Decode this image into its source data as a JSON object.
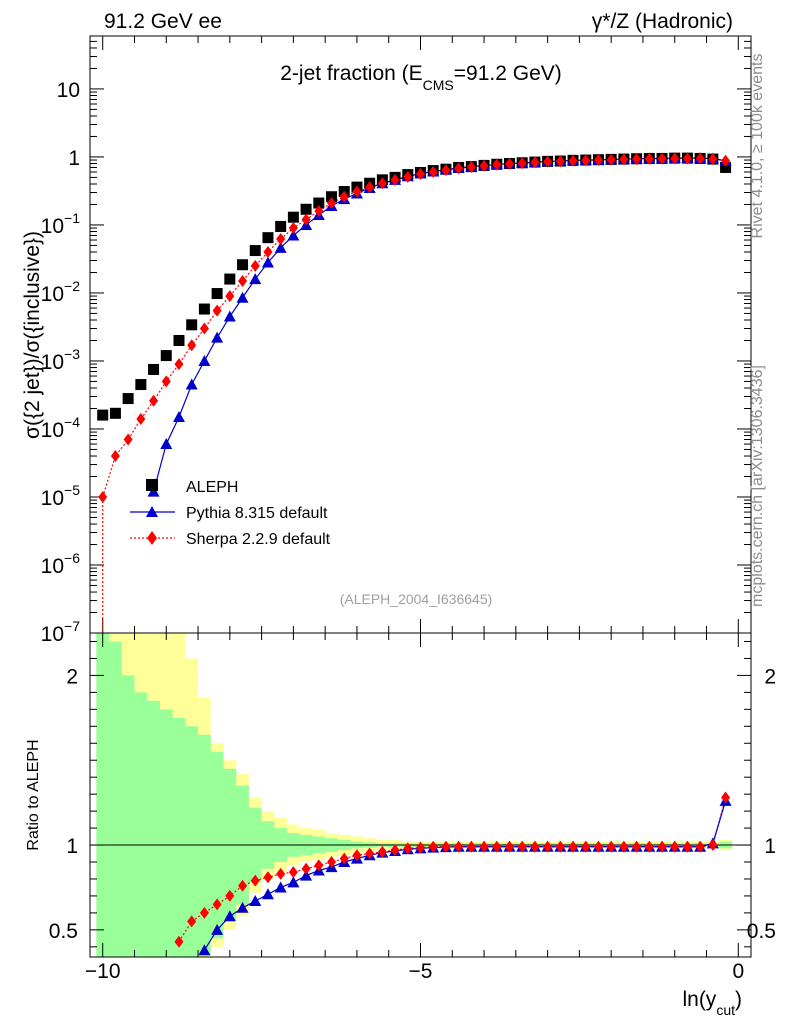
{
  "header": {
    "left": "91.2 GeV ee",
    "right": "γ*/Z (Hadronic)"
  },
  "side_labels": {
    "rivet": "Rivet 4.1.0, ≥ 100k events",
    "mcplots": "mcplots.cern.ch [arXiv:1306.3436]"
  },
  "chart_data": {
    "type": "scatter",
    "title": "2-jet fraction (E_CMS=91.2 GeV)",
    "title_parts": {
      "pre": "2-jet fraction (E",
      "sub": "CMS",
      "post": "=91.2 GeV)"
    },
    "watermark": "(ALEPH_2004_I636645)",
    "xlabel": "ln(y_cut)",
    "xlabel_parts": {
      "pre": "ln(y",
      "sub": "cut",
      "post": ")"
    },
    "ylabel": "σ({2 jet})/σ({inclusive})",
    "ratio_ylabel": "Ratio to ALEPH",
    "xlim": [
      -10.2,
      0.2
    ],
    "ylim_log": [
      1e-07,
      60
    ],
    "ratio_ylim": [
      0.34,
      2.25
    ],
    "x_ticks": [
      -10,
      -5,
      0
    ],
    "x_tick_labels": [
      "−10",
      "−5",
      "0"
    ],
    "ratio_ticks": [
      0.5,
      1,
      2
    ],
    "ratio_tick_labels": [
      "0.5",
      "1",
      "2"
    ],
    "y_tick_labels": [
      {
        "exp": -7,
        "base": "10",
        "sup": "−7"
      },
      {
        "exp": -6,
        "base": "10",
        "sup": "−6"
      },
      {
        "exp": -5,
        "base": "10",
        "sup": "−5"
      },
      {
        "exp": -4,
        "base": "10",
        "sup": "−4"
      },
      {
        "exp": -3,
        "base": "10",
        "sup": "−3"
      },
      {
        "exp": -2,
        "base": "10",
        "sup": "−2"
      },
      {
        "exp": -1,
        "base": "10",
        "sup": "−1"
      },
      {
        "exp": 0,
        "base": "1",
        "sup": ""
      },
      {
        "exp": 1,
        "base": "10",
        "sup": ""
      }
    ],
    "x": [
      -10.0,
      -9.8,
      -9.6,
      -9.4,
      -9.2,
      -9.0,
      -8.8,
      -8.6,
      -8.4,
      -8.2,
      -8.0,
      -7.8,
      -7.6,
      -7.4,
      -7.2,
      -7.0,
      -6.8,
      -6.6,
      -6.4,
      -6.2,
      -6.0,
      -5.8,
      -5.6,
      -5.4,
      -5.2,
      -5.0,
      -4.8,
      -4.6,
      -4.4,
      -4.2,
      -4.0,
      -3.8,
      -3.6,
      -3.4,
      -3.2,
      -3.0,
      -2.8,
      -2.6,
      -2.4,
      -2.2,
      -2.0,
      -1.8,
      -1.6,
      -1.4,
      -1.2,
      -1.0,
      -0.8,
      -0.6,
      -0.4,
      -0.2
    ],
    "bands": {
      "outer": [
        2.3,
        2.3,
        2.3,
        2.3,
        2.3,
        2.3,
        2.3,
        2.1,
        1.87,
        1.6,
        1.5,
        1.42,
        1.28,
        1.2,
        1.16,
        1.12,
        1.1,
        1.09,
        1.07,
        1.06,
        1.05,
        1.04,
        1.03,
        1.03,
        1.02,
        1.02,
        1.02,
        1.02,
        1.02,
        1.02,
        1.02,
        1.02,
        1.02,
        1.02,
        1.02,
        1.02,
        1.02,
        1.02,
        1.02,
        1.02,
        1.02,
        1.02,
        1.02,
        1.02,
        1.02,
        1.02,
        1.02,
        1.02,
        1.02,
        1.03
      ],
      "inner": [
        2.3,
        2.2,
        2.0,
        1.9,
        1.85,
        1.8,
        1.75,
        1.7,
        1.65,
        1.55,
        1.45,
        1.35,
        1.22,
        1.14,
        1.1,
        1.07,
        1.06,
        1.05,
        1.04,
        1.03,
        1.02,
        1.015,
        1.01,
        1.01,
        1.01,
        1.01,
        1.01,
        1.01,
        1.01,
        1.01,
        1.01,
        1.01,
        1.01,
        1.01,
        1.01,
        1.01,
        1.01,
        1.01,
        1.01,
        1.01,
        1.01,
        1.01,
        1.01,
        1.01,
        1.01,
        1.01,
        1.01,
        1.01,
        1.01,
        1.02
      ]
    },
    "series": [
      {
        "name": "ALEPH",
        "values": [
          0.00016,
          0.00017,
          0.00028,
          0.00045,
          0.00075,
          0.0012,
          0.002,
          0.0034,
          0.0058,
          0.0098,
          0.016,
          0.026,
          0.042,
          0.065,
          0.095,
          0.13,
          0.17,
          0.21,
          0.26,
          0.31,
          0.36,
          0.41,
          0.46,
          0.5,
          0.55,
          0.59,
          0.63,
          0.66,
          0.7,
          0.72,
          0.75,
          0.78,
          0.8,
          0.82,
          0.84,
          0.86,
          0.87,
          0.89,
          0.9,
          0.91,
          0.92,
          0.93,
          0.94,
          0.95,
          0.95,
          0.96,
          0.96,
          0.95,
          0.93,
          0.7
        ],
        "ratio": [
          null,
          null,
          null,
          null,
          null,
          null,
          null,
          null,
          null,
          null,
          null,
          null,
          null,
          null,
          null,
          null,
          null,
          null,
          null,
          null,
          null,
          null,
          null,
          null,
          null,
          null,
          null,
          null,
          null,
          null,
          null,
          null,
          null,
          null,
          null,
          null,
          null,
          null,
          null,
          null,
          null,
          null,
          null,
          null,
          null,
          null,
          null,
          null,
          null,
          null
        ]
      },
      {
        "name": "Pythia 8.315 default",
        "values": [
          null,
          null,
          null,
          null,
          1.2e-05,
          6e-05,
          0.00015,
          0.00045,
          0.001,
          0.0022,
          0.0045,
          0.0085,
          0.016,
          0.028,
          0.046,
          0.07,
          0.1,
          0.14,
          0.19,
          0.24,
          0.29,
          0.35,
          0.41,
          0.46,
          0.52,
          0.57,
          0.61,
          0.65,
          0.69,
          0.72,
          0.75,
          0.77,
          0.8,
          0.82,
          0.84,
          0.86,
          0.87,
          0.89,
          0.9,
          0.91,
          0.92,
          0.93,
          0.94,
          0.95,
          0.95,
          0.96,
          0.96,
          0.96,
          0.95,
          0.88
        ],
        "ratio": [
          null,
          null,
          null,
          null,
          null,
          null,
          null,
          null,
          0.38,
          0.5,
          0.58,
          0.63,
          0.67,
          0.71,
          0.75,
          0.78,
          0.82,
          0.85,
          0.87,
          0.9,
          0.92,
          0.94,
          0.955,
          0.965,
          0.975,
          0.98,
          0.985,
          0.988,
          0.99,
          0.99,
          0.99,
          0.99,
          0.99,
          0.99,
          0.99,
          0.99,
          0.99,
          0.99,
          0.99,
          0.99,
          0.99,
          0.99,
          0.99,
          0.99,
          0.99,
          0.99,
          0.99,
          0.99,
          1.01,
          1.26
        ],
        "color": "#0000cc"
      },
      {
        "name": "Sherpa 2.2.9 default",
        "values": [
          1e-05,
          4e-05,
          7e-05,
          0.00014,
          0.00026,
          0.0005,
          0.0009,
          0.0017,
          0.003,
          0.0055,
          0.009,
          0.015,
          0.025,
          0.04,
          0.062,
          0.09,
          0.12,
          0.16,
          0.21,
          0.26,
          0.31,
          0.36,
          0.41,
          0.46,
          0.51,
          0.56,
          0.6,
          0.64,
          0.68,
          0.71,
          0.74,
          0.77,
          0.79,
          0.81,
          0.83,
          0.85,
          0.86,
          0.88,
          0.89,
          0.9,
          0.91,
          0.92,
          0.93,
          0.94,
          0.94,
          0.95,
          0.95,
          0.95,
          0.93,
          0.88
        ],
        "ratio": [
          null,
          null,
          null,
          null,
          null,
          null,
          0.43,
          0.55,
          0.6,
          0.65,
          0.7,
          0.76,
          0.79,
          0.81,
          0.83,
          0.84,
          0.86,
          0.88,
          0.9,
          0.92,
          0.94,
          0.95,
          0.96,
          0.97,
          0.98,
          0.985,
          0.99,
          0.99,
          0.99,
          0.99,
          0.99,
          0.99,
          0.99,
          0.99,
          0.99,
          0.99,
          0.99,
          0.99,
          0.99,
          0.99,
          0.99,
          0.99,
          0.99,
          0.99,
          0.99,
          0.99,
          0.99,
          0.99,
          1.0,
          1.28
        ],
        "color": "#ff0000"
      }
    ],
    "legend": [
      {
        "label": "ALEPH"
      },
      {
        "label": "Pythia 8.315 default"
      },
      {
        "label": "Sherpa 2.2.9 default"
      }
    ],
    "colors": {
      "band_outer": "#ffff99",
      "band_inner": "#99ff99",
      "aleph": "#000000",
      "pythia": "#0000cc",
      "sherpa": "#ff0000"
    }
  }
}
